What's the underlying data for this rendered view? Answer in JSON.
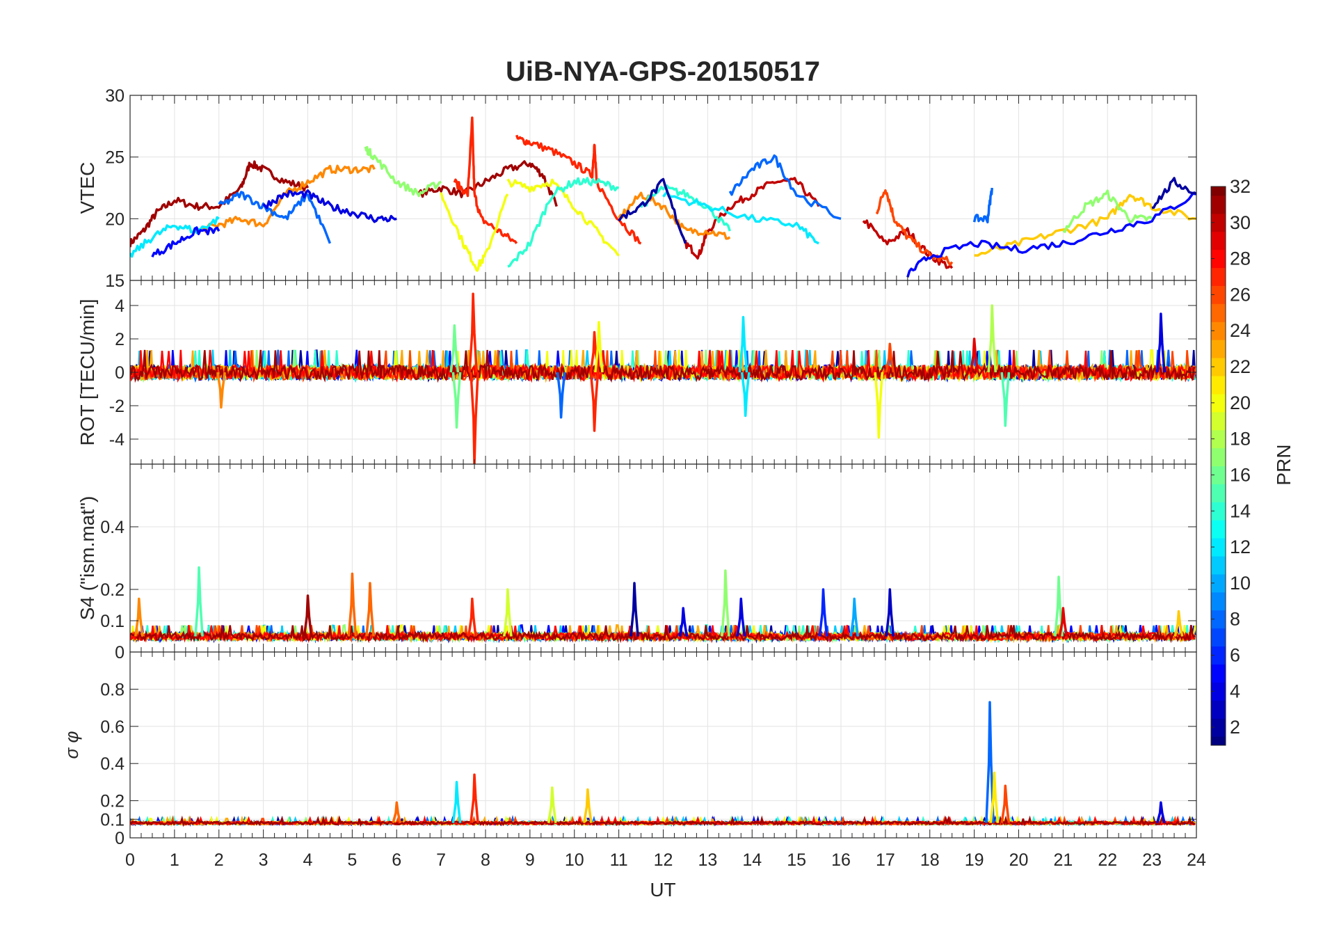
{
  "chart_data": {
    "type": "line",
    "title": "UiB-NYA-GPS-20150517",
    "xlabel": "UT",
    "xlim": [
      0,
      24
    ],
    "xticks": [
      "0",
      "1",
      "2",
      "3",
      "4",
      "5",
      "6",
      "7",
      "8",
      "9",
      "10",
      "11",
      "12",
      "13",
      "14",
      "15",
      "16",
      "17",
      "18",
      "19",
      "20",
      "21",
      "22",
      "23",
      "24"
    ],
    "grid": true,
    "colorbar": {
      "label": "PRN",
      "range": [
        1,
        32
      ],
      "ticks": [
        "2",
        "4",
        "6",
        "8",
        "10",
        "12",
        "14",
        "16",
        "18",
        "20",
        "22",
        "24",
        "26",
        "28",
        "30",
        "32"
      ],
      "colormap": "jet",
      "placement": "right"
    },
    "panels": [
      {
        "id": "vtec",
        "ylabel": "VTEC",
        "ylim": [
          15,
          30
        ],
        "yticks": [
          "15",
          "20",
          "25",
          "30"
        ],
        "tracks": [
          {
            "prn": 31,
            "x": [
              0,
              0.3,
              0.6,
              1,
              1.5,
              2,
              2.5,
              2.7,
              3,
              3.5,
              4
            ],
            "y": [
              18,
              19,
              20.5,
              21.5,
              21,
              21,
              22.5,
              24.5,
              24,
              23,
              22.5
            ]
          },
          {
            "prn": 31,
            "x": [
              6.5,
              7,
              7.5,
              8,
              8.5,
              9,
              9.3,
              9.6
            ],
            "y": [
              22,
              22.5,
              22,
              23,
              24,
              24.5,
              23.5,
              21
            ]
          },
          {
            "prn": 30,
            "x": [
              12.5,
              12.8,
              13,
              13.5,
              14,
              14.5,
              15,
              15.5
            ],
            "y": [
              18,
              17,
              19,
              21,
              22,
              23,
              23,
              21
            ]
          },
          {
            "prn": 30,
            "x": [
              16.5,
              17,
              17.5,
              18,
              18.5
            ],
            "y": [
              20,
              18,
              19,
              17,
              16
            ]
          },
          {
            "prn": 27,
            "x": [
              8.7,
              9,
              9.5,
              10,
              10.4,
              10.45,
              10.5,
              11,
              11.5
            ],
            "y": [
              26.5,
              26.2,
              25.5,
              24.5,
              23.5,
              26,
              23,
              20,
              18
            ]
          },
          {
            "prn": 27,
            "x": [
              7.3,
              7.6,
              7.7,
              7.75,
              7.9,
              8.3,
              8.7
            ],
            "y": [
              23,
              22,
              28,
              22,
              20,
              19,
              18
            ]
          },
          {
            "prn": 26,
            "x": [
              16.8,
              17,
              17.2,
              17.5,
              18,
              18.5
            ],
            "y": [
              20.5,
              22.5,
              20,
              18.5,
              17,
              16.5
            ]
          },
          {
            "prn": 24,
            "x": [
              1.5,
              2,
              2.5,
              3,
              3.5,
              4,
              4.5,
              5,
              5.5
            ],
            "y": [
              19,
              19.5,
              20,
              19.5,
              22,
              23,
              24,
              24,
              24
            ]
          },
          {
            "prn": 24,
            "x": [
              11,
              11.5,
              12,
              12.5,
              13,
              13.5
            ],
            "y": [
              20,
              22,
              21,
              19,
              19,
              18.5
            ]
          },
          {
            "prn": 22,
            "x": [
              19,
              20,
              21,
              22,
              22.5,
              23,
              24
            ],
            "y": [
              17,
              18,
              19,
              20,
              22,
              21,
              20
            ]
          },
          {
            "prn": 20,
            "x": [
              7,
              7.5,
              7.8,
              8,
              8.5
            ],
            "y": [
              22,
              18,
              16,
              17,
              22
            ]
          },
          {
            "prn": 20,
            "x": [
              8.5,
              9,
              9.5,
              10,
              10.5,
              11
            ],
            "y": [
              23,
              22.5,
              23,
              21,
              19,
              17
            ]
          },
          {
            "prn": 17,
            "x": [
              5.3,
              5.5,
              6,
              6.5,
              7
            ],
            "y": [
              25.7,
              25,
              23,
              22,
              23
            ]
          },
          {
            "prn": 17,
            "x": [
              21,
              21.5,
              22,
              22.5,
              23
            ],
            "y": [
              19,
              21,
              22,
              20,
              20
            ]
          },
          {
            "prn": 14,
            "x": [
              8.5,
              9,
              9.5,
              10,
              10.5,
              11
            ],
            "y": [
              16,
              18,
              22,
              23,
              23,
              22.5
            ]
          },
          {
            "prn": 14,
            "x": [
              11.5,
              12,
              12.5,
              13,
              13.5
            ],
            "y": [
              21,
              22.5,
              22,
              21,
              19
            ]
          },
          {
            "prn": 12,
            "x": [
              0,
              0.5,
              1,
              1.5,
              2
            ],
            "y": [
              17,
              18.5,
              19.5,
              19,
              20
            ]
          },
          {
            "prn": 12,
            "x": [
              12,
              13,
              14,
              15,
              15.5
            ],
            "y": [
              22,
              21,
              20,
              19.5,
              18
            ]
          },
          {
            "prn": 8,
            "x": [
              2,
              2.5,
              3,
              3.5,
              4,
              4.5
            ],
            "y": [
              21,
              22,
              21,
              20,
              22,
              18
            ]
          },
          {
            "prn": 8,
            "x": [
              13.5,
              14,
              14.5,
              15,
              16
            ],
            "y": [
              22,
              24,
              25,
              22,
              20
            ]
          },
          {
            "prn": 8,
            "x": [
              19,
              19.3,
              19.4
            ],
            "y": [
              20,
              20,
              22.5
            ]
          },
          {
            "prn": 5,
            "x": [
              0.5,
              1,
              1.5,
              2
            ],
            "y": [
              17,
              18,
              19,
              19
            ]
          },
          {
            "prn": 5,
            "x": [
              17.5,
              18,
              19,
              20,
              21,
              22,
              23,
              24
            ],
            "y": [
              15.5,
              17,
              18,
              17.5,
              18,
              19,
              20,
              22
            ]
          },
          {
            "prn": 2,
            "x": [
              11,
              11.5,
              12,
              12.5
            ],
            "y": [
              20,
              21,
              23,
              18
            ]
          },
          {
            "prn": 2,
            "x": [
              23,
              23.5,
              24
            ],
            "y": [
              21,
              23,
              22
            ]
          },
          {
            "prn": 4,
            "x": [
              3,
              3.5,
              4,
              4.5,
              5,
              5.5,
              6
            ],
            "y": [
              21,
              22,
              22,
              21,
              20.5,
              20,
              20
            ]
          }
        ]
      },
      {
        "id": "rot",
        "ylabel": "ROT [TECU/min]",
        "ylim": [
          -5.5,
          5.5
        ],
        "yticks": [
          "-4",
          "-2",
          "0",
          "2",
          "4"
        ],
        "baseline": 0,
        "noise": 0.45,
        "spikes": [
          {
            "prn": 27,
            "x": 7.72,
            "y": 4.7
          },
          {
            "prn": 27,
            "x": 7.75,
            "y": -5.5
          },
          {
            "prn": 16,
            "x": 7.3,
            "y": 2.8
          },
          {
            "prn": 16,
            "x": 7.35,
            "y": -3.3
          },
          {
            "prn": 27,
            "x": 10.45,
            "y": 2.4
          },
          {
            "prn": 27,
            "x": 10.45,
            "y": -3.5
          },
          {
            "prn": 12,
            "x": 13.8,
            "y": 3.3
          },
          {
            "prn": 12,
            "x": 13.85,
            "y": -2.6
          },
          {
            "prn": 20,
            "x": 10.55,
            "y": 3
          },
          {
            "prn": 20,
            "x": 16.85,
            "y": -3.9
          },
          {
            "prn": 26,
            "x": 17.1,
            "y": 1.7
          },
          {
            "prn": 29,
            "x": 19.0,
            "y": 2.0
          },
          {
            "prn": 18,
            "x": 19.4,
            "y": 4.0
          },
          {
            "prn": 15,
            "x": 19.7,
            "y": -3.2
          },
          {
            "prn": 4,
            "x": 23.2,
            "y": 3.5
          },
          {
            "prn": 8,
            "x": 9.7,
            "y": -2.7
          },
          {
            "prn": 24,
            "x": 2.05,
            "y": -2.1
          }
        ]
      },
      {
        "id": "s4",
        "ylabel": "S4 (\"ism.mat\")",
        "ylim": [
          0,
          0.6
        ],
        "yticks": [
          "0",
          "0.1",
          "0.2",
          "0.4"
        ],
        "baseline": 0.05,
        "noise": 0.012,
        "spikes": [
          {
            "prn": 24,
            "x": 0.2,
            "y": 0.17
          },
          {
            "prn": 15,
            "x": 1.55,
            "y": 0.27
          },
          {
            "prn": 31,
            "x": 4.0,
            "y": 0.18
          },
          {
            "prn": 25,
            "x": 5.0,
            "y": 0.25
          },
          {
            "prn": 25,
            "x": 5.4,
            "y": 0.22
          },
          {
            "prn": 27,
            "x": 7.7,
            "y": 0.17
          },
          {
            "prn": 19,
            "x": 8.5,
            "y": 0.2
          },
          {
            "prn": 2,
            "x": 11.35,
            "y": 0.22
          },
          {
            "prn": 4,
            "x": 12.45,
            "y": 0.14
          },
          {
            "prn": 17,
            "x": 13.4,
            "y": 0.26
          },
          {
            "prn": 4,
            "x": 13.75,
            "y": 0.17
          },
          {
            "prn": 6,
            "x": 15.6,
            "y": 0.2
          },
          {
            "prn": 10,
            "x": 16.3,
            "y": 0.17
          },
          {
            "prn": 3,
            "x": 17.1,
            "y": 0.2
          },
          {
            "prn": 16,
            "x": 20.9,
            "y": 0.24
          },
          {
            "prn": 29,
            "x": 21.0,
            "y": 0.14
          },
          {
            "prn": 22,
            "x": 23.6,
            "y": 0.13
          }
        ]
      },
      {
        "id": "sigma",
        "ylabel": "σ φ",
        "ylim": [
          0,
          1
        ],
        "yticks": [
          "0",
          "0.1",
          "0.2",
          "0.4",
          "0.6",
          "0.8"
        ],
        "baseline": 0.08,
        "noise": 0.008,
        "spikes": [
          {
            "prn": 12,
            "x": 7.35,
            "y": 0.3
          },
          {
            "prn": 27,
            "x": 7.75,
            "y": 0.34
          },
          {
            "prn": 19,
            "x": 9.5,
            "y": 0.27
          },
          {
            "prn": 22,
            "x": 10.3,
            "y": 0.26
          },
          {
            "prn": 8,
            "x": 19.35,
            "y": 0.73
          },
          {
            "prn": 21,
            "x": 19.45,
            "y": 0.35
          },
          {
            "prn": 26,
            "x": 19.7,
            "y": 0.28
          },
          {
            "prn": 25,
            "x": 6.0,
            "y": 0.19
          },
          {
            "prn": 4,
            "x": 23.2,
            "y": 0.19
          }
        ]
      }
    ]
  }
}
